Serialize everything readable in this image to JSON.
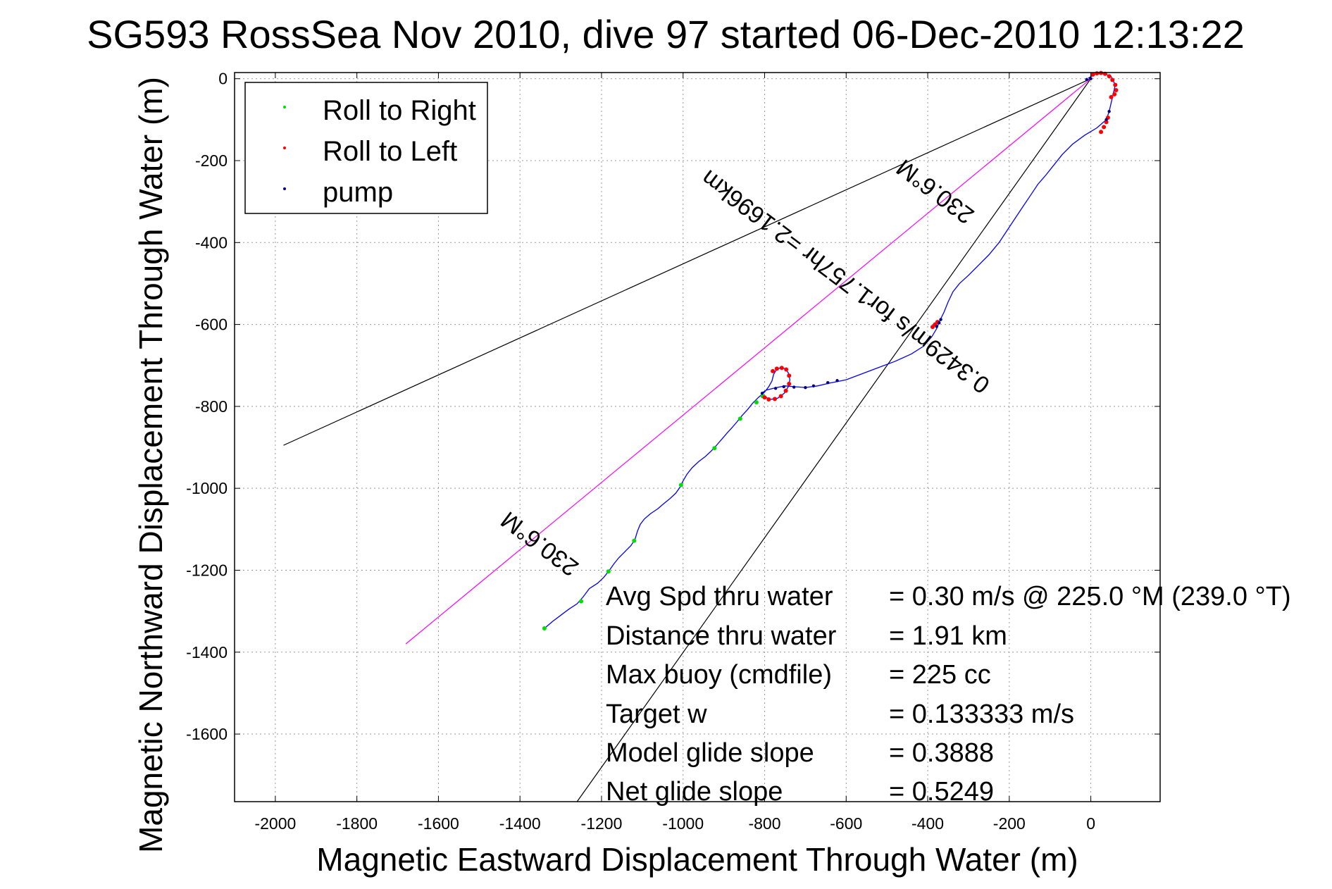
{
  "chart_data": {
    "type": "scatter",
    "title": "SG593 RossSea Nov 2010, dive 97 started 06-Dec-2010 12:13:22",
    "xlabel": "Magnetic Eastward Displacement Through Water (m)",
    "ylabel": "Magnetic Northward Displacement Through Water (m)",
    "xlim": [
      -2100,
      170
    ],
    "ylim": [
      -1765,
      15
    ],
    "x_ticks": [
      -2000,
      -1800,
      -1600,
      -1400,
      -1200,
      -1000,
      -800,
      -600,
      -400,
      -200,
      0
    ],
    "y_ticks": [
      0,
      -200,
      -400,
      -600,
      -800,
      -1000,
      -1200,
      -1400,
      -1600
    ],
    "grid": true,
    "legend": {
      "position": "top-left",
      "entries": [
        {
          "label": "Roll to Right",
          "color": "#00dd00"
        },
        {
          "label": "Roll to Left",
          "color": "#ff0000"
        },
        {
          "label": "pump",
          "color": "#000080"
        }
      ]
    },
    "reference_lines": [
      {
        "name": "wedge-upper",
        "color": "#000000",
        "points": [
          [
            0,
            0
          ],
          [
            -1980,
            -895
          ]
        ]
      },
      {
        "name": "wedge-lower",
        "color": "#000000",
        "points": [
          [
            0,
            0
          ],
          [
            -1260,
            -1765
          ]
        ]
      },
      {
        "name": "heading",
        "color": "#ff00ff",
        "points": [
          [
            0,
            0
          ],
          [
            -1680,
            -1380
          ]
        ]
      }
    ],
    "annotations": [
      {
        "text": "230.6°M",
        "at": [
          -370,
          -260
        ],
        "rotation_deg": 217
      },
      {
        "text": "0.3429m/s for1.757hr =2.1696km",
        "at": [
          -590,
          -480
        ],
        "rotation_deg": 217
      },
      {
        "text": "230.6°M",
        "at": [
          -1340,
          -1120
        ],
        "rotation_deg": 217
      }
    ],
    "track": {
      "name": "track",
      "color": "#0000ff",
      "points": [
        [
          -1340,
          -1342
        ],
        [
          -1320,
          -1325
        ],
        [
          -1300,
          -1310
        ],
        [
          -1280,
          -1295
        ],
        [
          -1260,
          -1282
        ],
        [
          -1245,
          -1265
        ],
        [
          -1230,
          -1245
        ],
        [
          -1210,
          -1232
        ],
        [
          -1195,
          -1218
        ],
        [
          -1182,
          -1202
        ],
        [
          -1170,
          -1185
        ],
        [
          -1158,
          -1170
        ],
        [
          -1143,
          -1155
        ],
        [
          -1128,
          -1140
        ],
        [
          -1118,
          -1125
        ],
        [
          -1112,
          -1105
        ],
        [
          -1105,
          -1088
        ],
        [
          -1095,
          -1075
        ],
        [
          -1080,
          -1062
        ],
        [
          -1062,
          -1050
        ],
        [
          -1048,
          -1038
        ],
        [
          -1032,
          -1025
        ],
        [
          -1018,
          -1012
        ],
        [
          -1008,
          -998
        ],
        [
          -1000,
          -982
        ],
        [
          -990,
          -965
        ],
        [
          -978,
          -950
        ],
        [
          -962,
          -935
        ],
        [
          -945,
          -922
        ],
        [
          -930,
          -908
        ],
        [
          -918,
          -895
        ],
        [
          -905,
          -880
        ],
        [
          -892,
          -865
        ],
        [
          -880,
          -852
        ],
        [
          -868,
          -838
        ],
        [
          -855,
          -822
        ],
        [
          -842,
          -808
        ],
        [
          -830,
          -793
        ],
        [
          -815,
          -778
        ],
        [
          -800,
          -765
        ],
        [
          -790,
          -752
        ],
        [
          -782,
          -738
        ],
        [
          -778,
          -722
        ],
        [
          -772,
          -712
        ],
        [
          -762,
          -706
        ],
        [
          -750,
          -708
        ],
        [
          -742,
          -718
        ],
        [
          -738,
          -735
        ],
        [
          -742,
          -752
        ],
        [
          -752,
          -768
        ],
        [
          -768,
          -780
        ],
        [
          -785,
          -783
        ],
        [
          -800,
          -777
        ],
        [
          -808,
          -768
        ],
        [
          -795,
          -760
        ],
        [
          -775,
          -755
        ],
        [
          -750,
          -750
        ],
        [
          -725,
          -752
        ],
        [
          -700,
          -754
        ],
        [
          -670,
          -750
        ],
        [
          -640,
          -743
        ],
        [
          -600,
          -735
        ],
        [
          -560,
          -720
        ],
        [
          -520,
          -705
        ],
        [
          -480,
          -690
        ],
        [
          -440,
          -672
        ],
        [
          -410,
          -653
        ],
        [
          -390,
          -630
        ],
        [
          -378,
          -610
        ],
        [
          -370,
          -590
        ],
        [
          -360,
          -570
        ],
        [
          -350,
          -545
        ],
        [
          -338,
          -520
        ],
        [
          -322,
          -500
        ],
        [
          -300,
          -480
        ],
        [
          -275,
          -455
        ],
        [
          -250,
          -430
        ],
        [
          -225,
          -400
        ],
        [
          -205,
          -370
        ],
        [
          -185,
          -340
        ],
        [
          -165,
          -310
        ],
        [
          -148,
          -285
        ],
        [
          -130,
          -258
        ],
        [
          -110,
          -235
        ],
        [
          -90,
          -210
        ],
        [
          -70,
          -185
        ],
        [
          -45,
          -160
        ],
        [
          -15,
          -138
        ],
        [
          15,
          -120
        ],
        [
          38,
          -100
        ],
        [
          45,
          -80
        ],
        [
          52,
          -50
        ],
        [
          60,
          -15
        ],
        [
          50,
          5
        ],
        [
          35,
          12
        ],
        [
          15,
          12
        ],
        [
          5,
          8
        ],
        [
          -5,
          2
        ],
        [
          0,
          0
        ]
      ]
    },
    "series": [
      {
        "name": "Roll to Right",
        "color": "#00dd00",
        "points": [
          [
            -1340,
            -1342
          ],
          [
            -1250,
            -1276
          ],
          [
            -1183,
            -1203
          ],
          [
            -1120,
            -1128
          ],
          [
            -1005,
            -992
          ],
          [
            -923,
            -902
          ],
          [
            -860,
            -830
          ],
          [
            -820,
            -790
          ],
          [
            -805,
            -775
          ]
        ]
      },
      {
        "name": "Roll to Left",
        "color": "#ff0000",
        "points": [
          [
            -780,
            -714
          ],
          [
            -770,
            -708
          ],
          [
            -758,
            -706
          ],
          [
            -747,
            -710
          ],
          [
            -740,
            -725
          ],
          [
            -740,
            -745
          ],
          [
            -748,
            -762
          ],
          [
            -760,
            -775
          ],
          [
            -775,
            -782
          ],
          [
            -790,
            -783
          ],
          [
            -800,
            -778
          ],
          [
            -388,
            -606
          ],
          [
            -382,
            -600
          ],
          [
            -376,
            -594
          ],
          [
            25,
            -130
          ],
          [
            32,
            -118
          ],
          [
            38,
            -106
          ],
          [
            42,
            -95
          ],
          [
            5,
            10
          ],
          [
            15,
            13
          ],
          [
            25,
            14
          ],
          [
            35,
            12
          ],
          [
            45,
            6
          ],
          [
            53,
            -3
          ],
          [
            60,
            -15
          ],
          [
            62,
            -28
          ],
          [
            58,
            -38
          ],
          [
            50,
            -45
          ]
        ]
      },
      {
        "name": "pump",
        "color": "#000080",
        "points": [
          [
            -806,
            -768
          ],
          [
            -773,
            -756
          ],
          [
            -753,
            -752
          ],
          [
            -728,
            -753
          ],
          [
            -700,
            -754
          ],
          [
            -680,
            -750
          ],
          [
            -645,
            -742
          ],
          [
            -622,
            -737
          ],
          [
            -378,
            -605
          ],
          [
            -372,
            -596
          ],
          [
            -368,
            -588
          ],
          [
            38,
            -100
          ],
          [
            45,
            -80
          ],
          [
            0,
            0
          ],
          [
            -10,
            -2
          ]
        ]
      }
    ],
    "text_box": {
      "lines": [
        {
          "label": "Avg Spd thru water",
          "value": "=  0.30 m/s @ 225.0 °M (239.0 °T)"
        },
        {
          "label": "Distance thru water",
          "value": "=  1.91 km"
        },
        {
          "label": "Max buoy (cmdfile)",
          "value": "= 225 cc"
        },
        {
          "label": "Target w",
          "value": "= 0.133333 m/s"
        },
        {
          "label": "Model glide slope",
          "value": "= 0.3888"
        },
        {
          "label": "Net glide slope",
          "value": "= 0.5249"
        }
      ]
    }
  }
}
